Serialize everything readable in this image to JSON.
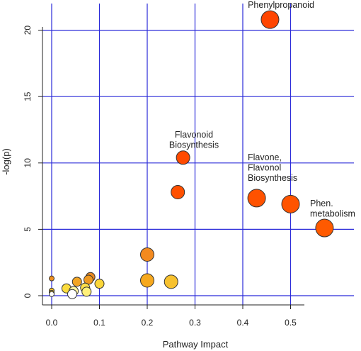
{
  "chart_data": {
    "type": "scatter",
    "title": "",
    "xlabel": "Pathway Impact",
    "ylabel": "-log(p)",
    "xlim": [
      -0.02,
      0.6
    ],
    "ylim": [
      -0.6,
      21.7
    ],
    "grid": true,
    "legend": "none",
    "x_ticks": [
      0.0,
      0.1,
      0.2,
      0.3,
      0.4,
      0.5
    ],
    "x_tick_labels": [
      "0.0",
      "0.1",
      "0.2",
      "0.3",
      "0.4",
      "0.5"
    ],
    "y_ticks": [
      0,
      5,
      10,
      15,
      20
    ],
    "y_tick_labels": [
      "0",
      "5",
      "10",
      "15",
      "20"
    ],
    "colors": {
      "grid": "#2b2bd9",
      "axis": "#222222",
      "point_stroke": "#333333",
      "high": "#ff4500",
      "mid": "#f38a1f",
      "low": "#f6bb2d",
      "pale": "#ffff99",
      "white": "#ffffff"
    },
    "points": [
      {
        "x": 0.457,
        "y": 20.8,
        "size": "large",
        "color": "#ff4500"
      },
      {
        "x": 0.275,
        "y": 10.4,
        "size": "medium",
        "color": "#ff4a00"
      },
      {
        "x": 0.264,
        "y": 7.8,
        "size": "medium",
        "color": "#ff5000"
      },
      {
        "x": 0.429,
        "y": 7.35,
        "size": "large",
        "color": "#ff5200"
      },
      {
        "x": 0.5,
        "y": 6.9,
        "size": "large",
        "color": "#ff5400"
      },
      {
        "x": 0.571,
        "y": 5.1,
        "size": "large",
        "color": "#ff5a00"
      },
      {
        "x": 0.2,
        "y": 3.1,
        "size": "medium",
        "color": "#f38a1f"
      },
      {
        "x": 0.0,
        "y": 1.3,
        "size": "tiny",
        "color": "#ee8f20"
      },
      {
        "x": 0.081,
        "y": 1.4,
        "size": "small",
        "color": "#ea8a22"
      },
      {
        "x": 0.077,
        "y": 1.2,
        "size": "small",
        "color": "#ee981f"
      },
      {
        "x": 0.053,
        "y": 1.05,
        "size": "small",
        "color": "#f2a422"
      },
      {
        "x": 0.2,
        "y": 1.15,
        "size": "medium",
        "color": "#f6a81f"
      },
      {
        "x": 0.25,
        "y": 1.05,
        "size": "medium",
        "color": "#f7c12e"
      },
      {
        "x": 0.1,
        "y": 0.9,
        "size": "small",
        "color": "#fbd63a"
      },
      {
        "x": 0.031,
        "y": 0.55,
        "size": "small",
        "color": "#fbdc3e"
      },
      {
        "x": 0.07,
        "y": 0.6,
        "size": "small",
        "color": "#fde04a"
      },
      {
        "x": 0.073,
        "y": 0.3,
        "size": "small",
        "color": "#fff07a"
      },
      {
        "x": 0.046,
        "y": 0.35,
        "size": "small",
        "color": "#fff5a0"
      },
      {
        "x": 0.0,
        "y": 0.38,
        "size": "tiny",
        "color": "#f6c02b"
      },
      {
        "x": 0.0,
        "y": 0.22,
        "size": "tiny",
        "color": "#fbd63a"
      },
      {
        "x": 0.0,
        "y": 0.12,
        "size": "tiny",
        "color": "#ffffff"
      },
      {
        "x": 0.043,
        "y": 0.12,
        "size": "small",
        "color": "#ffffff"
      }
    ],
    "annotations": [
      {
        "lines": [
          "Phenylpropanoid"
        ]
      },
      {
        "lines": [
          "Flavonoid",
          "Biosynthesis"
        ]
      },
      {
        "lines": [
          "Flavone,",
          "Flavonol",
          "Biosynthesis"
        ]
      },
      {
        "lines": [
          "Phen.",
          "metabolism"
        ]
      }
    ]
  }
}
